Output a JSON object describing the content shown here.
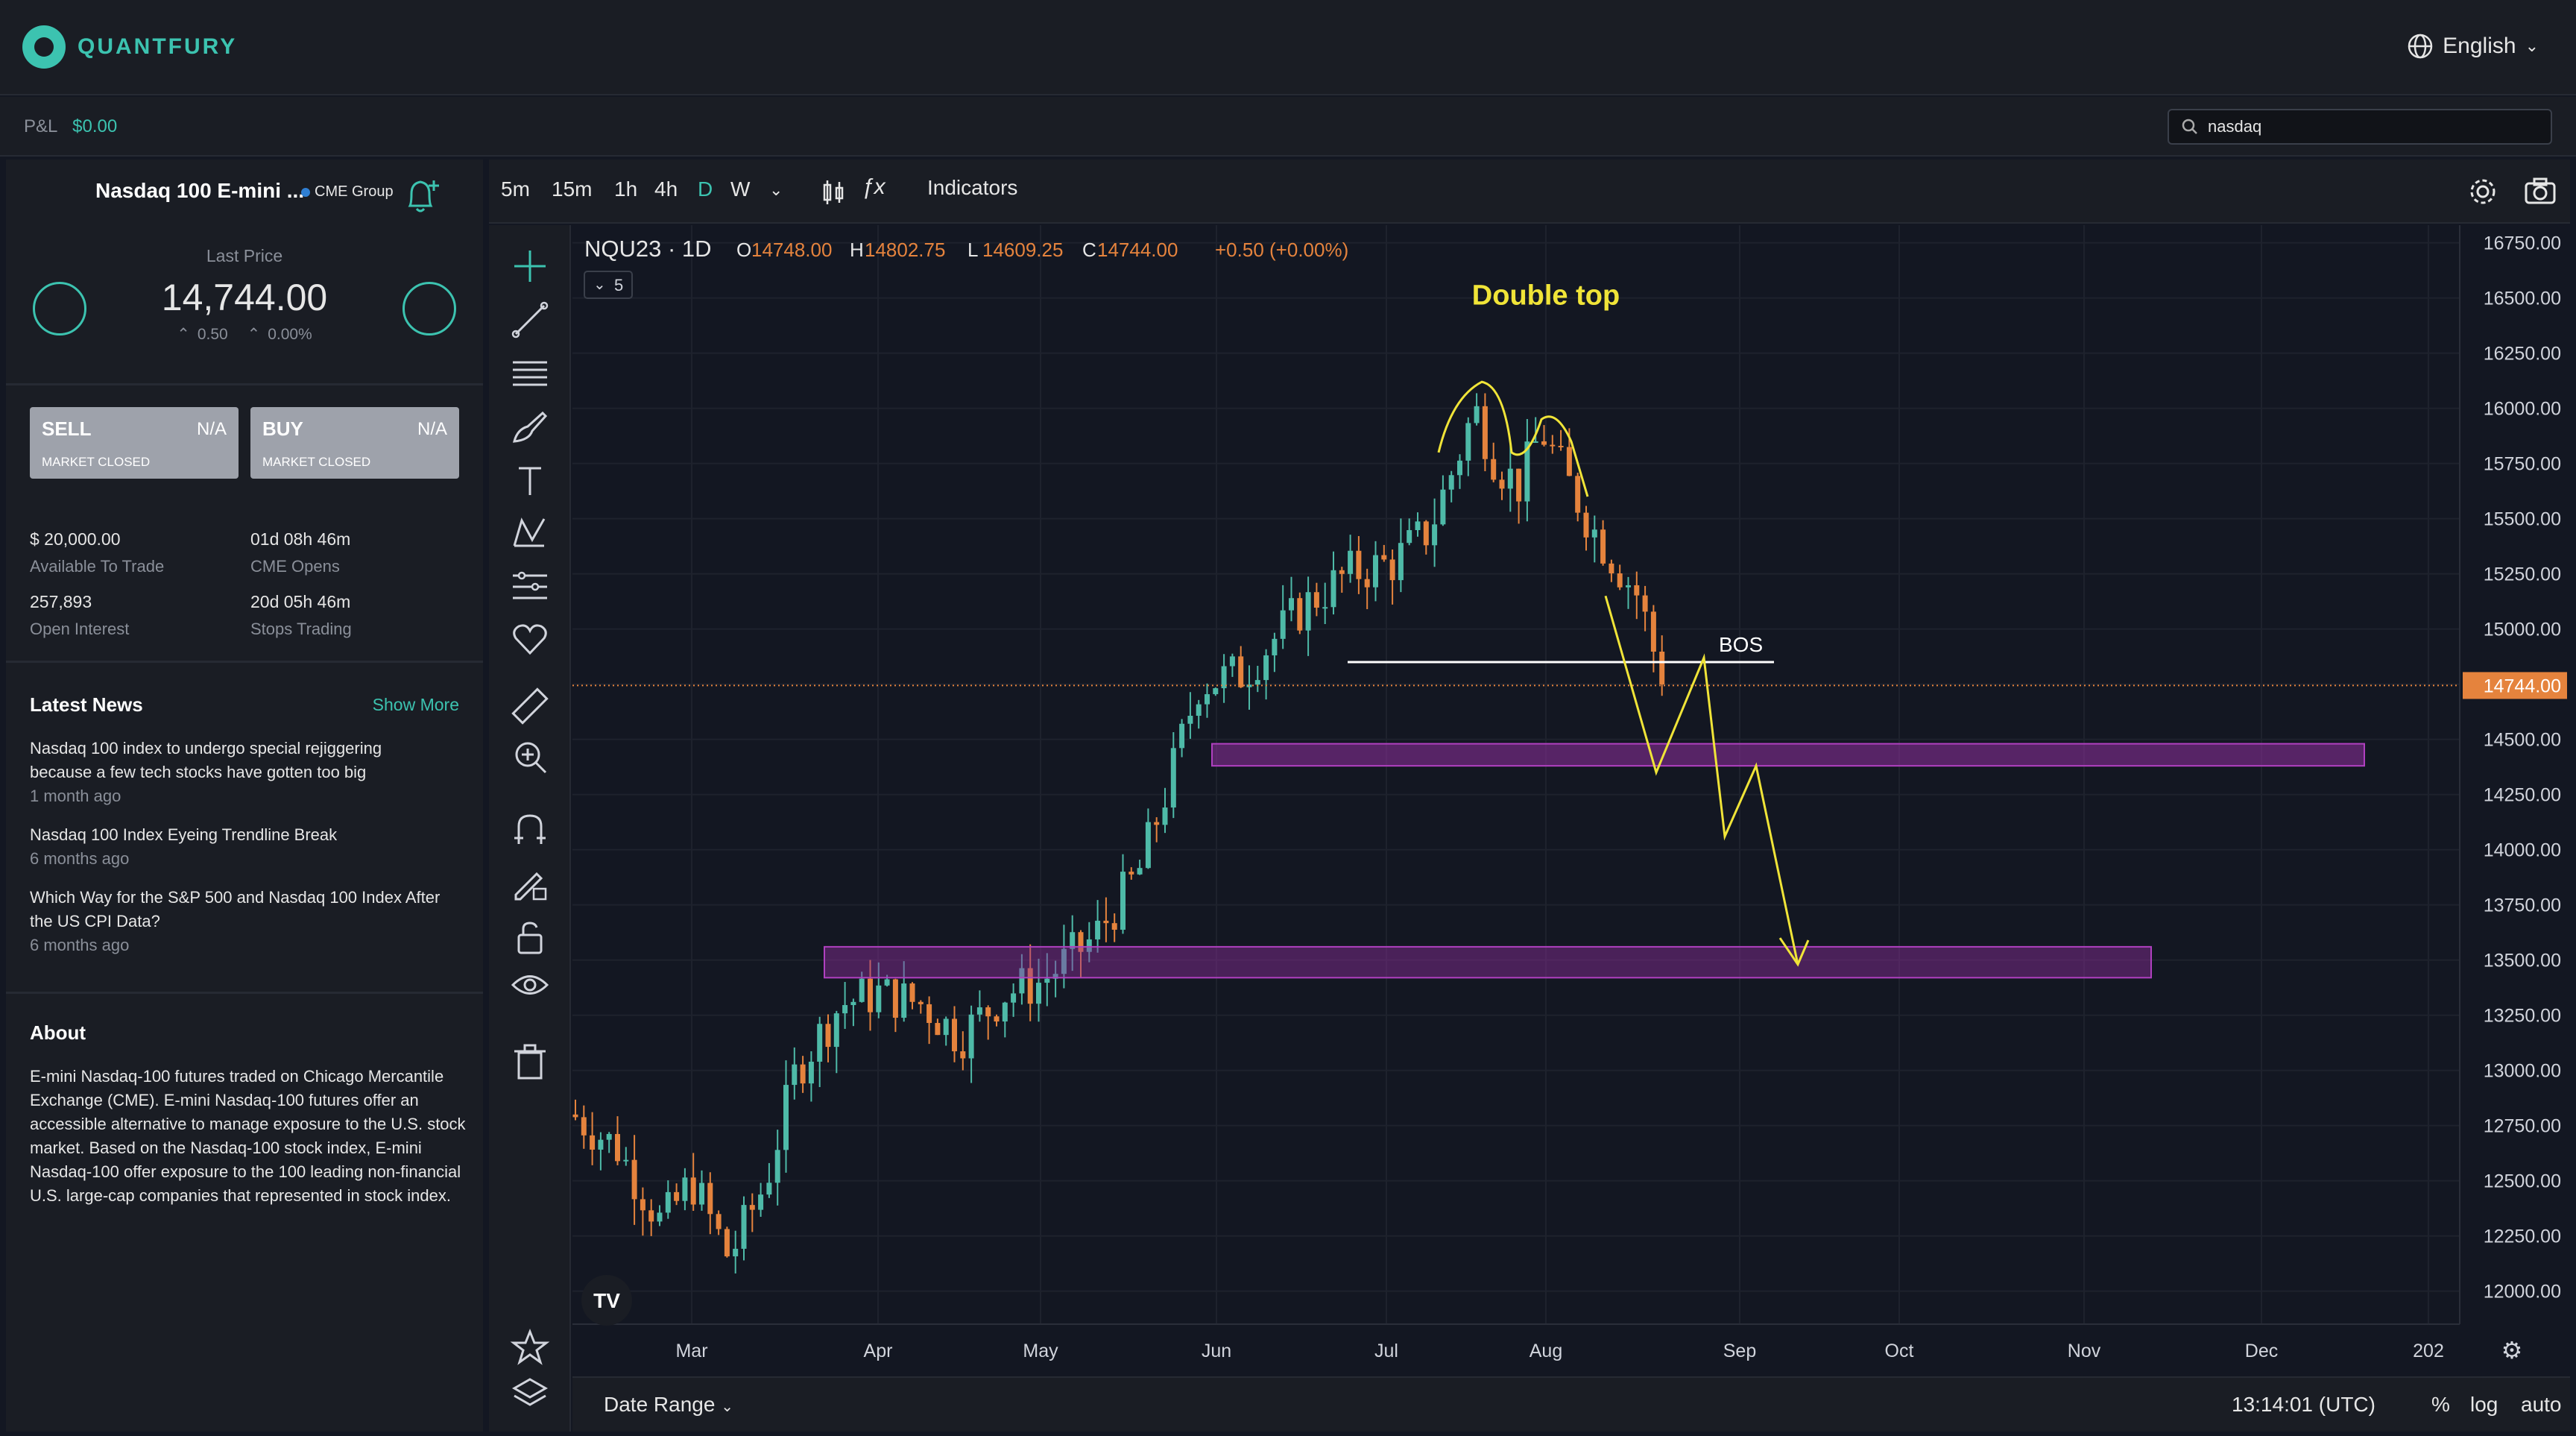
{
  "brand": {
    "name": "QUANTFURY"
  },
  "header": {
    "language": "English"
  },
  "subbar": {
    "pnl_label": "P&L",
    "pnl_value": "$0.00",
    "search_value": "nasdaq"
  },
  "instrument": {
    "name": "Nasdaq 100 E-mini ...",
    "exchange": "CME Group",
    "last_price_label": "Last Price",
    "last_price": "14,744.00",
    "change": "0.50",
    "change_pct": "0.00%"
  },
  "trade": {
    "sell_label": "SELL",
    "sell_value": "N/A",
    "sell_status": "MARKET CLOSED",
    "buy_label": "BUY",
    "buy_value": "N/A",
    "buy_status": "MARKET CLOSED"
  },
  "stats": [
    {
      "value": "$ 20,000.00",
      "label": "Available To Trade"
    },
    {
      "value": "01d 08h 46m",
      "label": "CME Opens"
    },
    {
      "value": "257,893",
      "label": "Open Interest"
    },
    {
      "value": "20d 05h 46m",
      "label": "Stops Trading"
    }
  ],
  "news": {
    "title": "Latest News",
    "show_more": "Show More",
    "items": [
      {
        "headline": "Nasdaq 100 index to undergo special rejiggering because a few tech stocks have gotten too big",
        "ago": "1 month ago"
      },
      {
        "headline": "Nasdaq 100 Index Eyeing Trendline Break",
        "ago": "6 months ago"
      },
      {
        "headline": "Which Way for the S&P 500 and Nasdaq 100 Index After the US CPI Data?",
        "ago": "6 months ago"
      }
    ]
  },
  "about": {
    "title": "About",
    "text": "E-mini Nasdaq-100 futures traded on Chicago Mercantile Exchange (CME). E-mini Nasdaq-100 futures offer an accessible alternative to manage exposure to the U.S. stock market. Based on the Nasdaq-100 stock index, E-mini Nasdaq-100 offer exposure to the 100 leading non-financial U.S. large-cap companies that represented in stock index."
  },
  "toolbar": {
    "timeframes": [
      "5m",
      "15m",
      "1h",
      "4h",
      "D",
      "W"
    ],
    "active_timeframe": "D",
    "indicators_label": "Indicators"
  },
  "chart_data": {
    "type": "candlestick",
    "symbol": "NQU23 · 1D",
    "ohlc_label": {
      "O": "14748.00",
      "H": "14802.75",
      "L": "14609.25",
      "C": "14744.00",
      "change": "+0.50 (+0.00%)"
    },
    "collapse_count": "5",
    "current_price": 14744.0,
    "current_price_label": "14744.00",
    "yticks": [
      "16750.00",
      "16500.00",
      "16250.00",
      "16000.00",
      "15750.00",
      "15500.00",
      "15250.00",
      "15000.00",
      "14750.00",
      "14500.00",
      "14250.00",
      "14000.00",
      "13750.00",
      "13500.00",
      "13250.00",
      "13000.00",
      "12750.00",
      "12500.00",
      "12250.00",
      "12000.00"
    ],
    "xticks": [
      "Mar",
      "Apr",
      "May",
      "Jun",
      "Jul",
      "Aug",
      "Sep",
      "Oct",
      "Nov",
      "Dec",
      "202"
    ],
    "ylim": [
      11850,
      16830
    ],
    "close_path_by_month": [
      {
        "month": "Mar",
        "approx_close": 12600
      },
      {
        "month": "Apr",
        "approx_close": 13300
      },
      {
        "month": "May",
        "approx_close": 14500
      },
      {
        "month": "Jun",
        "approx_close": 15200
      },
      {
        "month": "Jul",
        "approx_close": 15800
      },
      {
        "month": "Aug",
        "approx_close": 14700
      }
    ],
    "annotations": {
      "double_top_label": "Double top",
      "bos_label": "BOS",
      "bos_level": 14850,
      "zone_upper": [
        14380,
        14480
      ],
      "zone_lower": [
        13420,
        13560
      ]
    }
  },
  "bottom": {
    "date_range": "Date Range",
    "time": "13:14:01 (UTC)",
    "options": [
      "%",
      "log",
      "auto"
    ]
  },
  "colors": {
    "up": "#4ebaa8",
    "down": "#e5833d",
    "accent": "#3cc3b0",
    "annotation": "#f0e438",
    "zone": "#8f2f9e"
  }
}
